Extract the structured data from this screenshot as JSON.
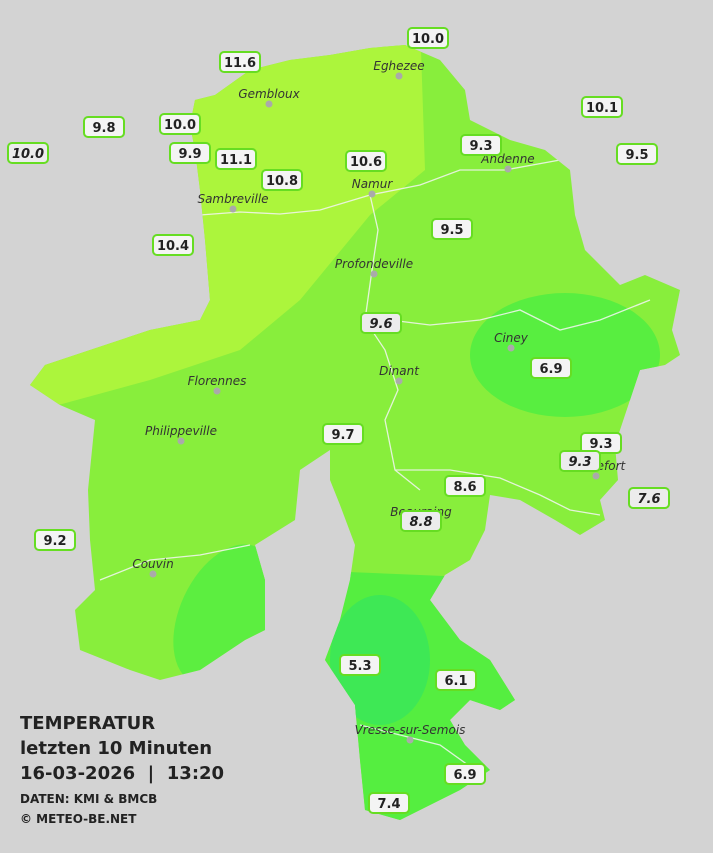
{
  "legend": {
    "title": "TEMPERATUR",
    "subtitle": "letzten 10 Minuten",
    "datetime": "16-03-2026  |  13:20",
    "source": "DATEN: KMI & BMCB",
    "copyright": "© METEO-BE.NET"
  },
  "cities": [
    "Eghezee",
    "Gembloux",
    "Andenne",
    "Namur",
    "Sambreville",
    "Profondeville",
    "Ciney",
    "Dinant",
    "Florennes",
    "Philippeville",
    "Rochefort",
    "Beauraing",
    "Couvin",
    "Vresse-sur-Semois"
  ],
  "stations": [
    "10.0",
    "11.6",
    "9.8",
    "10.0",
    "10.0",
    "9.9",
    "11.1",
    "10.6",
    "9.3",
    "10.1",
    "9.5",
    "10.8",
    "10.4",
    "9.5",
    "9.6",
    "6.9",
    "9.7",
    "9.3",
    "9.3",
    "8.6",
    "7.6",
    "8.8",
    "9.2",
    "5.3",
    "6.1",
    "6.9",
    "7.4"
  ]
}
